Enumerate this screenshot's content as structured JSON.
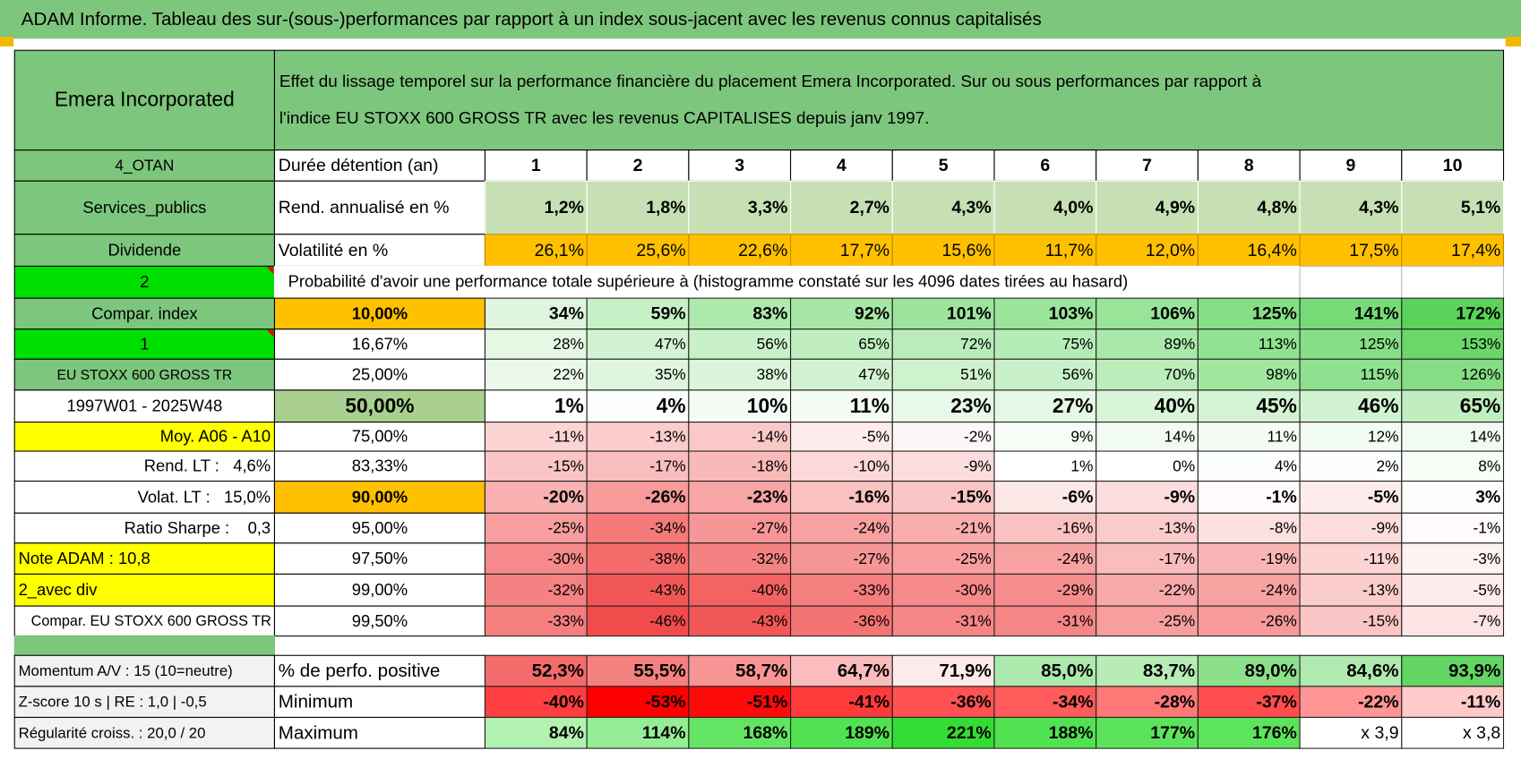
{
  "header": {
    "title": "ADAM Informe. Tableau des sur-(sous-)performances par rapport à un index sous-jacent avec les revenus connus capitalisés"
  },
  "table": {
    "company": "Emera Incorporated",
    "description": [
      "Effet du lissage temporel sur la performance financière du placement Emera Incorporated. Sur ou sous performances par rapport à",
      "l'indice EU STOXX 600 GROSS TR avec les revenus CAPITALISES depuis janv 1997."
    ],
    "side_labels": [
      "4_OTAN",
      "Services_publics",
      "Dividende",
      "2",
      "Compar. index",
      "1",
      "EU STOXX 600 GROSS TR",
      "1997W01 - 2025W48",
      "Moy. A06 - A10",
      "Rend. LT :   4,6%",
      "Volat. LT :   15,0%",
      "Ratio Sharpe :    0,3",
      "Note ADAM : 10,8",
      "2_avec div",
      "Compar. EU STOXX 600 GROSS TR"
    ],
    "holding": {
      "label": "Durée détention (an)",
      "years": [
        1,
        2,
        3,
        4,
        5,
        6,
        7,
        8,
        9,
        10
      ]
    },
    "return": {
      "label": "Rend. annualisé en %",
      "values": [
        "1,2%",
        "1,8%",
        "3,3%",
        "2,7%",
        "4,3%",
        "4,0%",
        "4,9%",
        "4,8%",
        "4,3%",
        "5,1%"
      ]
    },
    "volatility": {
      "label": "Volatilité en %",
      "values": [
        "26,1%",
        "25,6%",
        "22,6%",
        "17,7%",
        "15,6%",
        "11,7%",
        "12,0%",
        "16,4%",
        "17,5%",
        "17,4%"
      ]
    },
    "probability_title": "Probabilité d'avoir une performance totale supérieure à (histogramme constaté sur les 4096 dates tirées au hasard)",
    "quantiles": [
      {
        "level": "10,00%",
        "values": [
          "34%",
          "59%",
          "83%",
          "92%",
          "101%",
          "103%",
          "106%",
          "125%",
          "141%",
          "172%"
        ]
      },
      {
        "level": "16,67%",
        "values": [
          "28%",
          "47%",
          "56%",
          "65%",
          "72%",
          "75%",
          "89%",
          "113%",
          "125%",
          "153%"
        ]
      },
      {
        "level": "25,00%",
        "values": [
          "22%",
          "35%",
          "38%",
          "47%",
          "51%",
          "56%",
          "70%",
          "98%",
          "115%",
          "126%"
        ]
      },
      {
        "level": "50,00%",
        "values": [
          "1%",
          "4%",
          "10%",
          "11%",
          "23%",
          "27%",
          "40%",
          "45%",
          "46%",
          "65%"
        ]
      },
      {
        "level": "75,00%",
        "values": [
          "-11%",
          "-13%",
          "-14%",
          "-5%",
          "-2%",
          "9%",
          "14%",
          "11%",
          "12%",
          "14%"
        ]
      },
      {
        "level": "83,33%",
        "values": [
          "-15%",
          "-17%",
          "-18%",
          "-10%",
          "-9%",
          "1%",
          "0%",
          "4%",
          "2%",
          "8%"
        ]
      },
      {
        "level": "90,00%",
        "values": [
          "-20%",
          "-26%",
          "-23%",
          "-16%",
          "-15%",
          "-6%",
          "-9%",
          "-1%",
          "-5%",
          "3%"
        ]
      },
      {
        "level": "95,00%",
        "values": [
          "-25%",
          "-34%",
          "-27%",
          "-24%",
          "-21%",
          "-16%",
          "-13%",
          "-8%",
          "-9%",
          "-1%"
        ]
      },
      {
        "level": "97,50%",
        "values": [
          "-30%",
          "-38%",
          "-32%",
          "-27%",
          "-25%",
          "-24%",
          "-17%",
          "-19%",
          "-11%",
          "-3%"
        ]
      },
      {
        "level": "99,00%",
        "values": [
          "-32%",
          "-43%",
          "-40%",
          "-33%",
          "-30%",
          "-29%",
          "-22%",
          "-24%",
          "-13%",
          "-5%"
        ]
      },
      {
        "level": "99,50%",
        "values": [
          "-33%",
          "-46%",
          "-43%",
          "-36%",
          "-31%",
          "-31%",
          "-25%",
          "-26%",
          "-15%",
          "-7%"
        ]
      }
    ],
    "bottom": [
      {
        "side": "Momentum A/V : 15 (10=neutre)",
        "label": "% de perfo. positive",
        "values": [
          "52,3%",
          "55,5%",
          "58,7%",
          "64,7%",
          "71,9%",
          "85,0%",
          "83,7%",
          "89,0%",
          "84,6%",
          "93,9%"
        ]
      },
      {
        "side": "Z-score 10 s | RE : 1,0 | -0,5",
        "label": "Minimum",
        "values": [
          "-40%",
          "-53%",
          "-51%",
          "-41%",
          "-36%",
          "-34%",
          "-28%",
          "-37%",
          "-22%",
          "-11%"
        ]
      },
      {
        "side": "Régularité croiss. : 20,0 / 20",
        "label": "Maximum",
        "values": [
          "84%",
          "114%",
          "168%",
          "189%",
          "221%",
          "188%",
          "177%",
          "176%",
          "x 3,9",
          "x 3,8"
        ]
      }
    ]
  }
}
